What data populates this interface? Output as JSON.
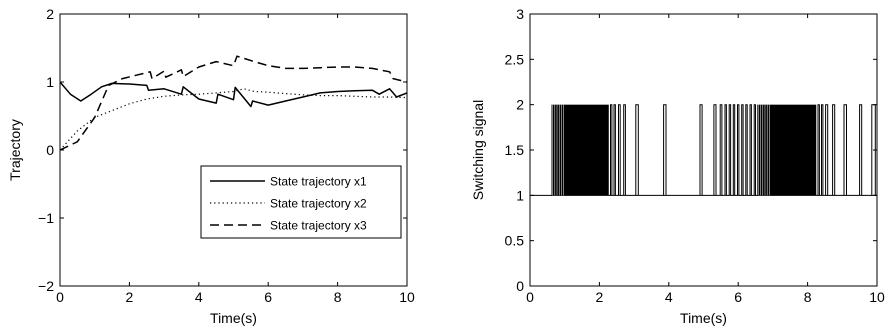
{
  "chart_data": [
    {
      "type": "line",
      "xlabel": "Time(s)",
      "ylabel": "Trajectory",
      "xlim": [
        0,
        10
      ],
      "ylim": [
        -2,
        2
      ],
      "xticks": [
        0,
        2,
        4,
        6,
        8,
        10
      ],
      "yticks": [
        -2,
        -1,
        0,
        1,
        2
      ],
      "xtick_labels": [
        "0",
        "2",
        "4",
        "6",
        "8",
        "10"
      ],
      "ytick_labels": [
        "−2",
        "−1",
        "0",
        "1",
        "2"
      ],
      "grid": false,
      "legend_position": "bottom-right",
      "series": [
        {
          "name": "State trajectory x1",
          "style": "solid",
          "x": [
            0,
            0.3,
            0.6,
            0.9,
            1.2,
            1.5,
            2.0,
            2.5,
            2.55,
            3.0,
            3.5,
            3.55,
            4.0,
            4.5,
            4.55,
            5.0,
            5.05,
            5.5,
            5.55,
            6.0,
            6.5,
            7.0,
            7.5,
            8.0,
            8.5,
            9.0,
            9.2,
            9.5,
            9.7,
            10.0
          ],
          "y": [
            1.0,
            0.82,
            0.72,
            0.82,
            0.93,
            0.98,
            0.97,
            0.95,
            0.88,
            0.9,
            0.82,
            0.93,
            0.75,
            0.69,
            0.82,
            0.74,
            0.92,
            0.64,
            0.72,
            0.66,
            0.72,
            0.78,
            0.84,
            0.86,
            0.87,
            0.88,
            0.82,
            0.9,
            0.78,
            0.84
          ]
        },
        {
          "name": "State trajectory x2",
          "style": "dotted",
          "x": [
            0,
            0.5,
            1.0,
            1.5,
            2.0,
            2.5,
            3.0,
            3.5,
            4.0,
            4.5,
            5.0,
            5.3,
            5.6,
            6.0,
            6.5,
            7.0,
            7.5,
            8.0,
            8.5,
            9.0,
            9.5,
            10.0
          ],
          "y": [
            0.0,
            0.28,
            0.48,
            0.58,
            0.68,
            0.75,
            0.79,
            0.81,
            0.82,
            0.84,
            0.86,
            0.9,
            0.86,
            0.85,
            0.83,
            0.81,
            0.8,
            0.8,
            0.79,
            0.78,
            0.78,
            0.77
          ]
        },
        {
          "name": "State trajectory x3",
          "style": "dashed",
          "x": [
            0,
            0.5,
            1.0,
            1.4,
            1.8,
            2.2,
            2.6,
            2.65,
            3.0,
            3.05,
            3.5,
            3.55,
            4.0,
            4.5,
            5.0,
            5.1,
            5.6,
            6.0,
            6.5,
            7.0,
            7.5,
            8.0,
            8.5,
            9.0,
            9.5,
            9.6,
            10.0
          ],
          "y": [
            0.0,
            0.12,
            0.48,
            0.95,
            1.05,
            1.1,
            1.15,
            1.05,
            1.16,
            1.07,
            1.18,
            1.08,
            1.22,
            1.3,
            1.24,
            1.38,
            1.3,
            1.24,
            1.2,
            1.2,
            1.21,
            1.22,
            1.22,
            1.2,
            1.15,
            1.05,
            1.0
          ]
        }
      ]
    },
    {
      "type": "line",
      "xlabel": "Time(s)",
      "ylabel": "Switching signal",
      "xlim": [
        0,
        10
      ],
      "ylim": [
        0,
        3
      ],
      "xticks": [
        0,
        2,
        4,
        6,
        8,
        10
      ],
      "yticks": [
        0,
        0.5,
        1,
        1.5,
        2,
        2.5,
        3
      ],
      "xtick_labels": [
        "0",
        "2",
        "4",
        "6",
        "8",
        "10"
      ],
      "ytick_labels": [
        "0",
        "0.5",
        "1",
        "1.5",
        "2",
        "2.5",
        "3"
      ],
      "grid": false,
      "signal_levels": [
        1,
        2
      ],
      "dense_switching_intervals": [
        [
          0.62,
          2.27
        ],
        [
          6.55,
          8.25
        ]
      ],
      "pulses_at_level_2": [
        [
          2.32,
          2.36
        ],
        [
          2.42,
          2.46
        ],
        [
          2.55,
          2.6
        ],
        [
          2.7,
          2.75
        ],
        [
          3.05,
          3.12
        ],
        [
          3.85,
          3.92
        ],
        [
          4.9,
          4.96
        ],
        [
          5.3,
          5.36
        ],
        [
          5.48,
          5.53
        ],
        [
          5.62,
          5.66
        ],
        [
          5.74,
          5.78
        ],
        [
          5.86,
          5.9
        ],
        [
          5.98,
          6.02
        ],
        [
          6.1,
          6.14
        ],
        [
          6.22,
          6.26
        ],
        [
          6.34,
          6.38
        ],
        [
          6.46,
          6.5
        ],
        [
          8.3,
          8.34
        ],
        [
          8.4,
          8.44
        ],
        [
          8.52,
          8.58
        ],
        [
          8.72,
          8.78
        ],
        [
          9.05,
          9.12
        ],
        [
          9.5,
          9.56
        ],
        [
          9.85,
          9.95
        ]
      ]
    }
  ]
}
